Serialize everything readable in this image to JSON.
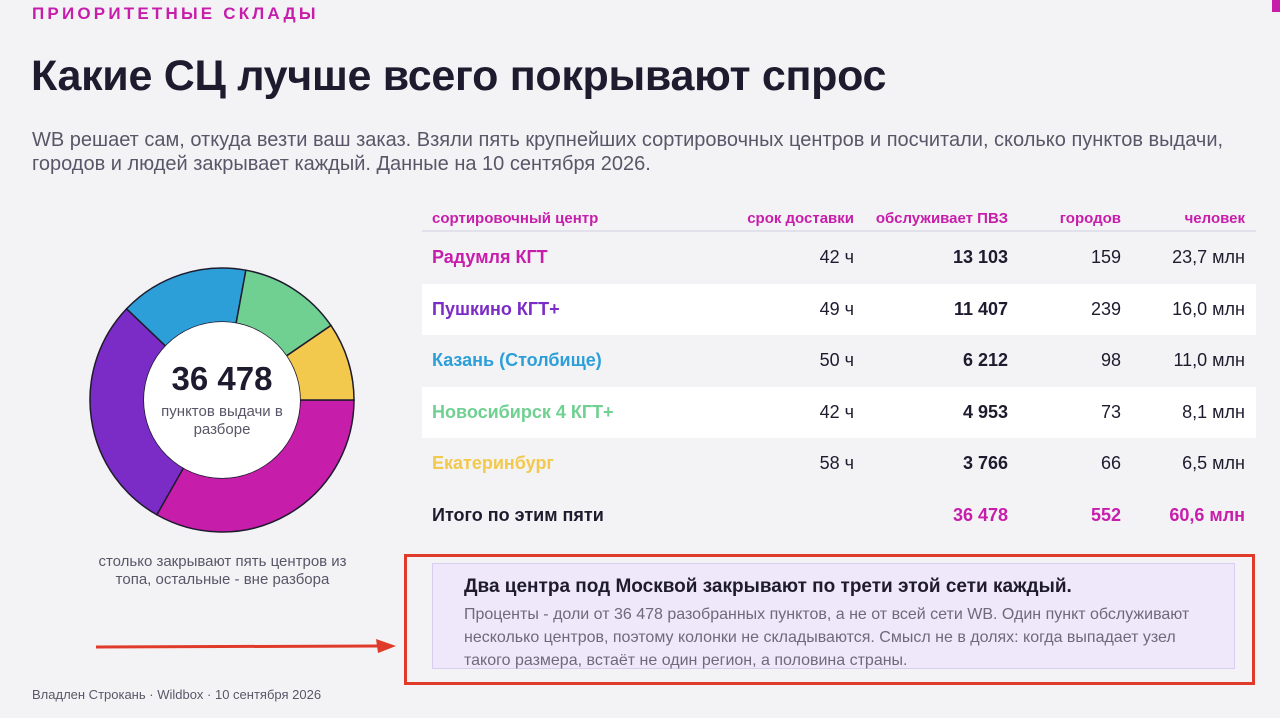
{
  "header": {
    "kicker": "ПРИОРИТЕТНЫЕ СКЛАДЫ",
    "title": "Какие СЦ лучше всего покрывают спрос",
    "lead": "WB решает сам, откуда везти ваш заказ. Взяли пять крупнейших сортировочных центров и посчитали, сколько пунктов выдачи, городов и людей закрывает каждый. Данные на 10 сентября 2026."
  },
  "donut": {
    "center_value": "36 478",
    "center_label": "пунктов выдачи в разборе",
    "caption": "столько закрывают пять центров из топа, остальные - вне разбора"
  },
  "chart_data": {
    "type": "pie",
    "categories": [
      "Радумля КГТ",
      "Пушкино КГТ+",
      "Казань (Столбище)",
      "Новосибирск 4 КГТ+",
      "Екатеринбург"
    ],
    "values": [
      13103,
      11407,
      6212,
      4953,
      3766
    ],
    "colors": [
      "#c71dab",
      "#7b2bc6",
      "#2d9fd8",
      "#6fd092",
      "#f2c94c"
    ],
    "title": ""
  },
  "table": {
    "headers": [
      "сортировочный центр",
      "срок доставки",
      "обслуживает ПВЗ",
      "городов",
      "человек"
    ],
    "rows": [
      {
        "name": "Радумля КГТ",
        "color": "#c71dab",
        "delivery": "42 ч",
        "pvz": "13 103",
        "cities": "159",
        "people": "23,7 млн"
      },
      {
        "name": "Пушкино КГТ+",
        "color": "#7b2bc6",
        "delivery": "49 ч",
        "pvz": "11 407",
        "cities": "239",
        "people": "16,0 млн"
      },
      {
        "name": "Казань (Столбище)",
        "color": "#2d9fd8",
        "delivery": "50 ч",
        "pvz": "6 212",
        "cities": "98",
        "people": "11,0 млн"
      },
      {
        "name": "Новосибирск 4 КГТ+",
        "color": "#6fd092",
        "delivery": "42 ч",
        "pvz": "4 953",
        "cities": "73",
        "people": "8,1 млн"
      },
      {
        "name": "Екатеринбург",
        "color": "#f2c94c",
        "delivery": "58 ч",
        "pvz": "3 766",
        "cities": "66",
        "people": "6,5 млн"
      }
    ],
    "total": {
      "name": "Итого по этим пяти",
      "pvz": "36 478",
      "cities": "552",
      "people": "60,6 млн"
    }
  },
  "note": {
    "title": "Два центра под Москвой закрывают по трети этой сети каждый.",
    "body": "Проценты - доли от 36 478 разобранных пунктов, а не от всей сети WB. Один пункт обслуживают несколько центров, поэтому колонки не складываются. Смысл не в долях: когда выпадает узел такого размера, встаёт не один регион, а половина страны."
  },
  "footer": {
    "credit": "Владлен Строкань · Wildbox · 10 сентября 2026"
  },
  "colors": {
    "accent": "#c71dab",
    "highlight_frame": "#e03a2a"
  }
}
